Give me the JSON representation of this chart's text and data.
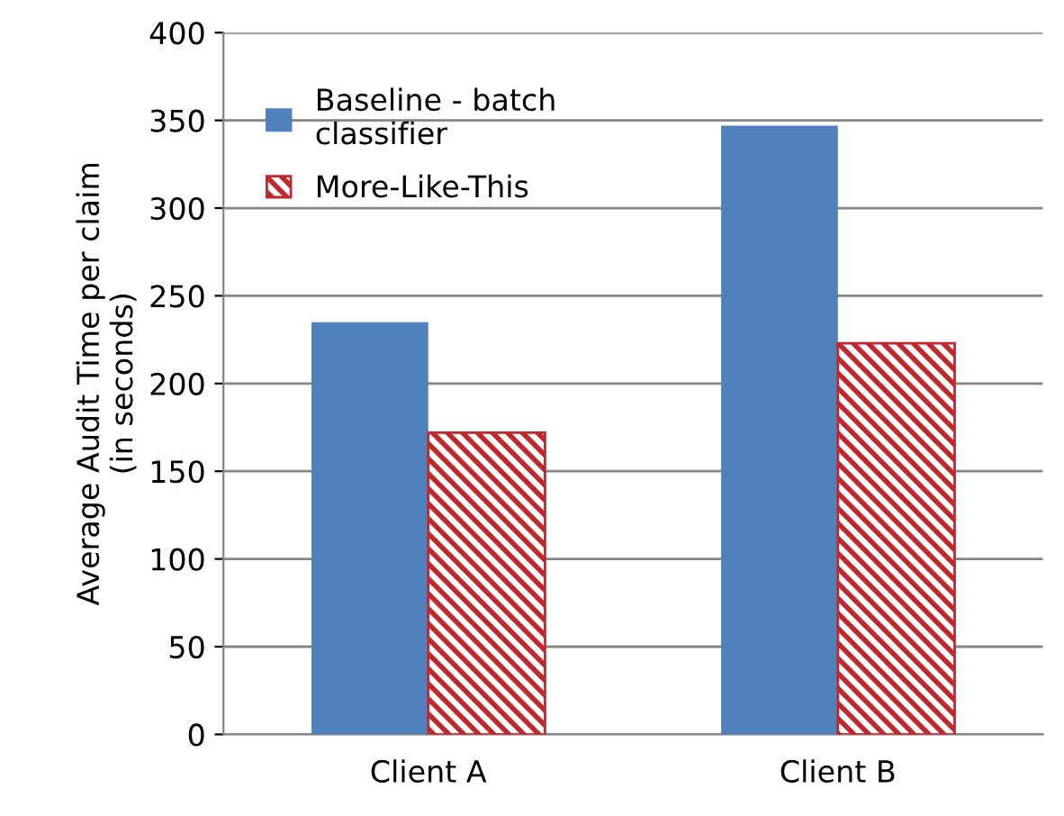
{
  "chart_data": {
    "type": "bar",
    "ylabel": "Average Audit Time per claim\n(in seconds)",
    "categories": [
      "Client A",
      "Client B"
    ],
    "series": [
      {
        "name": "Baseline - batch classifier",
        "color": "#4f81bd",
        "values": [
          235,
          347
        ]
      },
      {
        "name": "More-Like-This",
        "color": "#c0282d",
        "values": [
          172,
          223
        ]
      }
    ],
    "ylim": [
      0,
      400
    ],
    "yticks": [
      0,
      50,
      100,
      150,
      200,
      250,
      300,
      350,
      400
    ],
    "grid": "y",
    "legend": "top left"
  }
}
